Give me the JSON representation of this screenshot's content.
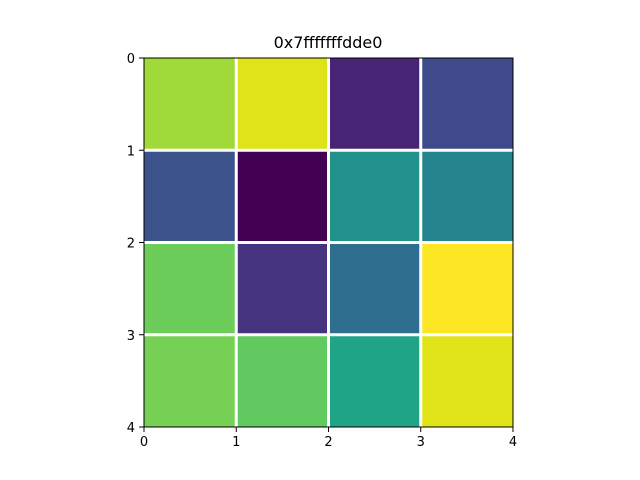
{
  "chart_data": {
    "type": "heatmap",
    "title": "0x7fffffffdde0",
    "xlabel": "",
    "ylabel": "",
    "rows": 4,
    "cols": 4,
    "xlim": [
      0,
      4
    ],
    "ylim": [
      4,
      0
    ],
    "x_ticks": [
      "0",
      "1",
      "2",
      "3",
      "4"
    ],
    "y_ticks": [
      "0",
      "1",
      "2",
      "3",
      "4"
    ],
    "colormap": "viridis",
    "grid": true,
    "grid_color": "#ffffff",
    "cells": [
      [
        {
          "value": 0.8,
          "color": "#a0da39"
        },
        {
          "value": 0.91,
          "color": "#dfe318"
        },
        {
          "value": 0.08,
          "color": "#482475"
        },
        {
          "value": 0.22,
          "color": "#3e4a89"
        }
      ],
      [
        {
          "value": 0.24,
          "color": "#3b528b"
        },
        {
          "value": 0.0,
          "color": "#440154"
        },
        {
          "value": 0.5,
          "color": "#21918c"
        },
        {
          "value": 0.47,
          "color": "#25838e"
        }
      ],
      [
        {
          "value": 0.75,
          "color": "#6ccd5a"
        },
        {
          "value": 0.16,
          "color": "#463480"
        },
        {
          "value": 0.38,
          "color": "#2e6e8e"
        },
        {
          "value": 0.98,
          "color": "#fde725"
        }
      ],
      [
        {
          "value": 0.77,
          "color": "#75d054"
        },
        {
          "value": 0.73,
          "color": "#60ca60"
        },
        {
          "value": 0.58,
          "color": "#20a486"
        },
        {
          "value": 0.92,
          "color": "#e0e318"
        }
      ]
    ]
  }
}
